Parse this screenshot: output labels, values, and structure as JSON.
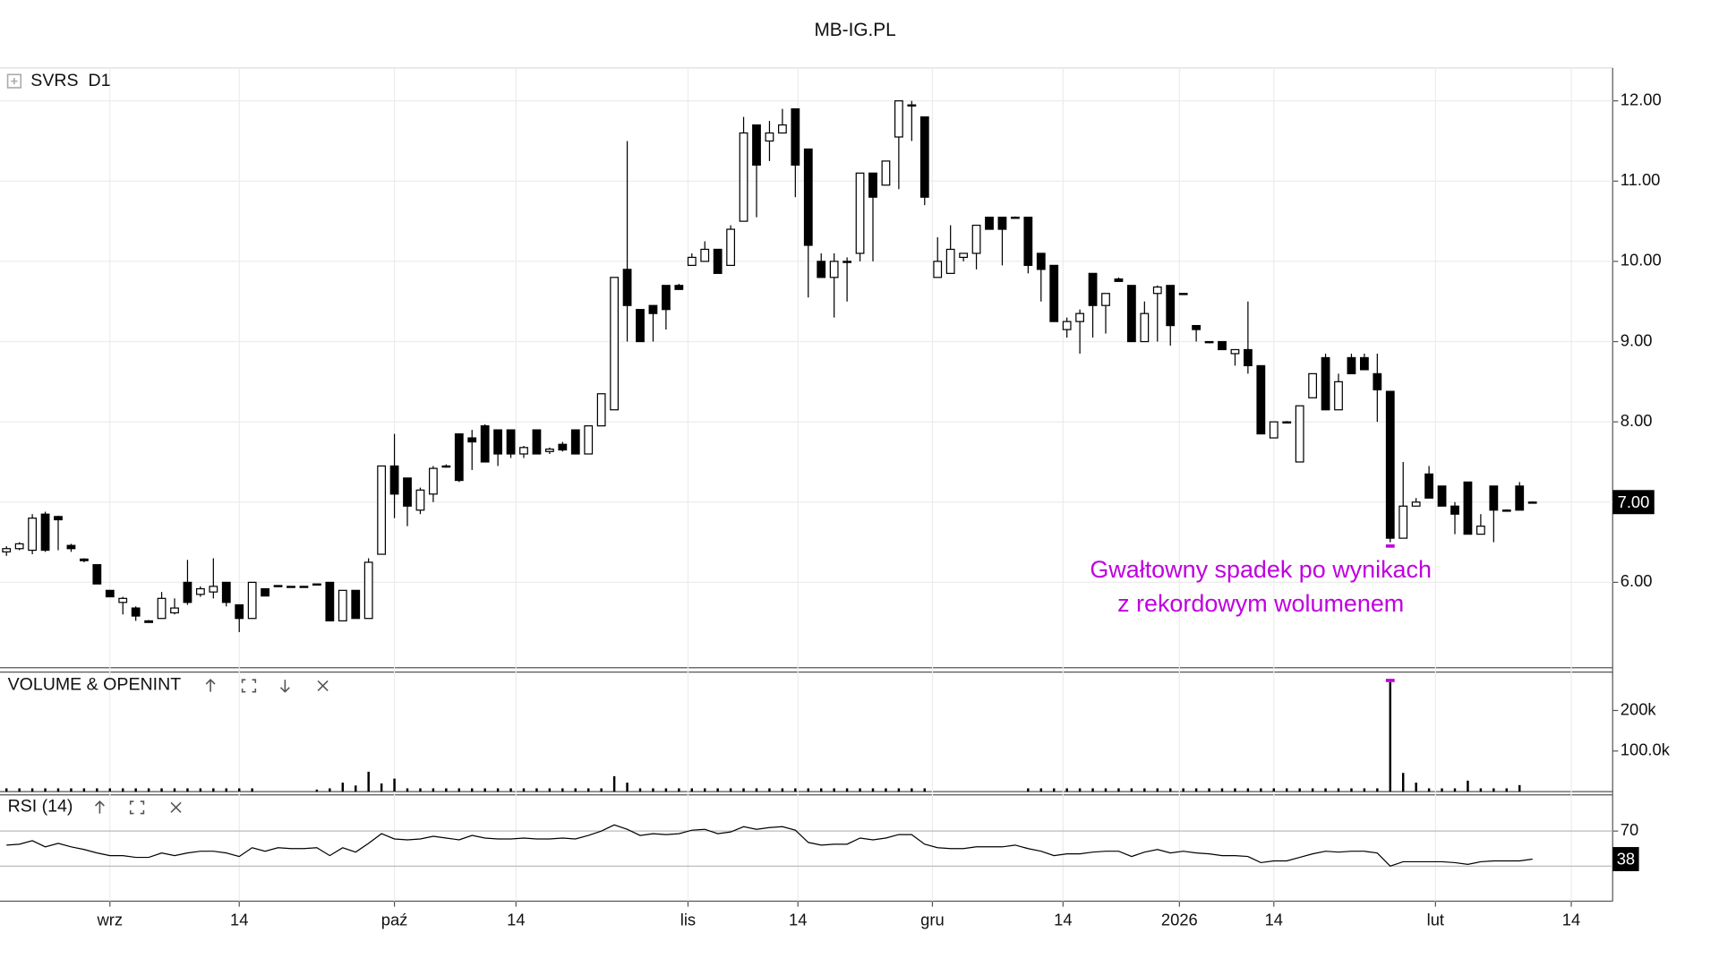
{
  "title": "MB-IG.PL",
  "chart_data": [
    {
      "type": "candlestick",
      "label": "SVRS  D1",
      "xlim": [
        -0.5,
        124.2
      ],
      "xticks": [
        {
          "value": 8,
          "label": "wrz"
        },
        {
          "value": 18,
          "label": "14"
        },
        {
          "value": 30,
          "label": "paź"
        },
        {
          "value": 39.4,
          "label": "14"
        },
        {
          "value": 52.7,
          "label": "lis"
        },
        {
          "value": 61.2,
          "label": "14"
        },
        {
          "value": 71.6,
          "label": "gru"
        },
        {
          "value": 81.7,
          "label": "14"
        },
        {
          "value": 90.7,
          "label": "2026"
        },
        {
          "value": 98,
          "label": "14"
        },
        {
          "value": 110.5,
          "label": "lut"
        },
        {
          "value": 121,
          "label": "14"
        }
      ],
      "ylim": [
        4.95,
        12.41
      ],
      "yticks": [
        {
          "value": 6,
          "label": "6.00"
        },
        {
          "value": 7,
          "label": "7.00"
        },
        {
          "value": 8,
          "label": "8.00"
        },
        {
          "value": 9,
          "label": "9.00"
        },
        {
          "value": 10,
          "label": "10.00"
        },
        {
          "value": 11,
          "label": "11.00"
        },
        {
          "value": 12,
          "label": "12.00"
        }
      ],
      "grid": true,
      "up_color": "#ffffff",
      "down_color": "#000000",
      "last_label": "7.00",
      "annotation": [
        "Gwałtowny spadek po wynikach",
        "z rekordowym wolumenem"
      ],
      "annotation_color": "#c000e0",
      "annotation_index": 107,
      "open": [
        6.38,
        6.42,
        6.4,
        6.85,
        6.82,
        6.46,
        6.29,
        6.22,
        5.9,
        5.75,
        5.68,
        5.52,
        5.55,
        5.62,
        6.0,
        5.85,
        5.88,
        6.0,
        5.72,
        5.55,
        5.92,
        5.96,
        5.95,
        5.95,
        5.98,
        6.0,
        5.52,
        5.9,
        5.55,
        6.35,
        7.45,
        7.3,
        6.9,
        7.1,
        7.45,
        7.85,
        7.8,
        7.95,
        7.9,
        7.9,
        7.6,
        7.9,
        7.63,
        7.72,
        7.9,
        7.6,
        7.95,
        8.15,
        9.9,
        9.4,
        9.45,
        9.7,
        9.7,
        9.95,
        10.0,
        10.15,
        9.95,
        10.5,
        11.7,
        11.5,
        11.6,
        11.9,
        11.4,
        10.0,
        9.8,
        10.0,
        10.1,
        11.1,
        10.95,
        11.55,
        11.95,
        11.8,
        9.8,
        9.85,
        10.05,
        10.1,
        10.55,
        10.55,
        10.55,
        10.55,
        10.1,
        9.95,
        9.15,
        9.25,
        9.85,
        9.45,
        9.78,
        9.7,
        9.0,
        9.6,
        9.7,
        9.6,
        9.2,
        9.0,
        9.0,
        8.85,
        8.9,
        8.7,
        7.8,
        8.0,
        7.5,
        8.3,
        8.8,
        8.15,
        8.8,
        8.8,
        8.6,
        8.38,
        6.55,
        6.95,
        7.35,
        7.2,
        6.95,
        7.25,
        6.6,
        7.2,
        6.9,
        7.2,
        7.0
      ],
      "high": [
        6.45,
        6.5,
        6.85,
        6.88,
        6.83,
        6.48,
        6.3,
        6.22,
        5.9,
        5.82,
        5.7,
        5.53,
        5.88,
        5.8,
        6.28,
        5.95,
        6.3,
        6.0,
        5.72,
        6.0,
        5.92,
        5.96,
        5.95,
        5.95,
        5.98,
        6.0,
        5.9,
        5.9,
        6.3,
        7.45,
        7.85,
        7.3,
        7.18,
        7.45,
        7.47,
        7.85,
        7.9,
        7.97,
        7.9,
        7.9,
        7.7,
        7.9,
        7.68,
        7.75,
        7.9,
        7.95,
        8.35,
        9.8,
        11.5,
        9.4,
        9.45,
        9.7,
        9.72,
        10.1,
        10.25,
        10.15,
        10.45,
        11.8,
        11.7,
        11.75,
        11.9,
        11.9,
        11.4,
        10.1,
        10.1,
        10.05,
        11.1,
        11.1,
        11.25,
        12.0,
        12.0,
        11.8,
        10.3,
        10.45,
        10.1,
        10.45,
        10.55,
        10.55,
        10.56,
        10.55,
        10.1,
        9.95,
        9.3,
        9.4,
        9.85,
        9.6,
        9.8,
        9.7,
        9.5,
        9.7,
        9.7,
        9.6,
        9.2,
        9.0,
        9.0,
        8.9,
        9.5,
        8.7,
        8.0,
        8.01,
        8.2,
        8.6,
        8.85,
        8.6,
        8.85,
        8.85,
        8.85,
        8.38,
        7.5,
        7.05,
        7.45,
        7.2,
        7.0,
        7.25,
        6.85,
        7.2,
        6.91,
        7.25,
        7.01
      ],
      "low": [
        6.33,
        6.4,
        6.35,
        6.38,
        6.4,
        6.38,
        6.25,
        5.98,
        5.82,
        5.6,
        5.52,
        5.5,
        5.55,
        5.6,
        5.72,
        5.82,
        5.8,
        5.7,
        5.38,
        5.55,
        5.83,
        5.95,
        5.94,
        5.94,
        5.97,
        5.52,
        5.52,
        5.55,
        5.55,
        6.35,
        6.8,
        6.7,
        6.85,
        7.0,
        7.43,
        7.25,
        7.4,
        7.5,
        7.45,
        7.55,
        7.55,
        7.6,
        7.6,
        7.63,
        7.6,
        7.6,
        7.95,
        8.15,
        9.0,
        9.0,
        9.0,
        9.15,
        9.65,
        9.95,
        10.0,
        9.85,
        9.95,
        10.5,
        10.55,
        11.25,
        11.6,
        10.8,
        9.55,
        9.8,
        9.3,
        9.5,
        10.0,
        10.0,
        10.95,
        10.9,
        11.5,
        10.7,
        9.8,
        9.85,
        10.0,
        9.9,
        10.4,
        9.95,
        10.54,
        9.85,
        9.5,
        9.25,
        9.05,
        8.85,
        9.05,
        9.1,
        9.75,
        9.0,
        9.0,
        9.0,
        8.95,
        9.58,
        9.0,
        8.98,
        8.9,
        8.7,
        8.6,
        7.85,
        7.8,
        7.99,
        7.5,
        8.3,
        8.15,
        8.15,
        8.6,
        8.65,
        8.0,
        6.5,
        6.55,
        6.95,
        7.05,
        6.95,
        6.6,
        6.6,
        6.6,
        6.5,
        6.89,
        6.9,
        6.99
      ],
      "close": [
        6.42,
        6.48,
        6.8,
        6.4,
        6.78,
        6.42,
        6.27,
        5.98,
        5.82,
        5.8,
        5.58,
        5.5,
        5.8,
        5.68,
        5.75,
        5.92,
        5.95,
        5.75,
        5.55,
        6.0,
        5.83,
        5.95,
        5.94,
        5.94,
        5.97,
        5.52,
        5.9,
        5.55,
        6.25,
        7.45,
        7.1,
        6.95,
        7.15,
        7.42,
        7.44,
        7.27,
        7.75,
        7.5,
        7.6,
        7.6,
        7.68,
        7.6,
        7.66,
        7.65,
        7.6,
        7.95,
        8.35,
        9.8,
        9.45,
        9.0,
        9.35,
        9.4,
        9.65,
        10.05,
        10.15,
        9.85,
        10.4,
        11.6,
        11.2,
        11.6,
        11.7,
        11.2,
        10.2,
        9.8,
        10.0,
        10.0,
        11.1,
        10.8,
        11.25,
        12.0,
        11.95,
        10.8,
        10.0,
        10.15,
        10.1,
        10.45,
        10.4,
        10.4,
        10.55,
        9.95,
        9.9,
        9.25,
        9.25,
        9.35,
        9.45,
        9.6,
        9.75,
        9.0,
        9.35,
        9.68,
        9.2,
        9.59,
        9.15,
        8.99,
        8.9,
        8.9,
        8.7,
        7.85,
        8.0,
        8.0,
        8.2,
        8.6,
        8.15,
        8.5,
        8.6,
        8.65,
        8.4,
        6.55,
        6.95,
        7.0,
        7.05,
        6.95,
        6.85,
        6.6,
        6.7,
        6.9,
        6.9,
        6.9,
        7.0
      ]
    },
    {
      "type": "bar",
      "label": "VOLUME & OPENINT",
      "color": "#000000",
      "ylim": [
        0,
        292000
      ],
      "yticks": [
        {
          "value": 100000,
          "label": "100.0k"
        },
        {
          "value": 200000,
          "label": "200k"
        }
      ],
      "values": [
        8000,
        8000,
        8000,
        8000,
        8000,
        8000,
        8000,
        8000,
        8000,
        8000,
        8000,
        8000,
        8000,
        8000,
        8000,
        8000,
        8000,
        8000,
        8000,
        8000,
        0,
        0,
        0,
        0,
        5000,
        8000,
        22000,
        15000,
        49000,
        20000,
        32000,
        8000,
        8000,
        8000,
        8000,
        8000,
        8000,
        8000,
        8000,
        8000,
        8000,
        8000,
        8000,
        8000,
        8000,
        8000,
        8000,
        38000,
        22000,
        8000,
        8000,
        8000,
        8000,
        8000,
        8000,
        8000,
        8000,
        8000,
        8000,
        8000,
        8000,
        8000,
        8000,
        8000,
        8000,
        8000,
        8000,
        8000,
        8000,
        8000,
        8000,
        8000,
        0,
        0,
        0,
        0,
        0,
        0,
        0,
        8000,
        8000,
        8000,
        8000,
        8000,
        8000,
        8000,
        8000,
        8000,
        8000,
        8000,
        8000,
        8000,
        8000,
        8000,
        8000,
        8000,
        8000,
        8000,
        8000,
        8000,
        8000,
        8000,
        8000,
        8000,
        8000,
        8000,
        8000,
        270000,
        46000,
        22000,
        8000,
        8000,
        8000,
        27000,
        8000,
        8000,
        8000,
        16000,
        0
      ]
    },
    {
      "type": "line",
      "label": "RSI (14)",
      "color": "#000000",
      "ylim": [
        -10,
        110
      ],
      "yticks": [
        70
      ],
      "levels": [
        30,
        70
      ],
      "last_label": "38",
      "values": [
        54,
        55,
        59,
        52,
        56,
        52,
        49,
        45,
        42,
        42,
        40,
        40,
        45,
        42,
        45,
        47,
        47,
        45,
        41,
        51,
        47,
        51,
        50,
        50,
        51,
        42,
        51,
        46,
        56,
        67,
        61,
        60,
        61,
        64,
        62,
        60,
        65,
        62,
        61,
        61,
        62,
        61,
        61,
        62,
        61,
        65,
        70,
        77,
        72,
        65,
        67,
        66,
        67,
        71,
        72,
        67,
        69,
        75,
        72,
        74,
        75,
        71,
        57,
        54,
        55,
        55,
        62,
        60,
        62,
        66,
        66,
        55,
        51,
        50,
        50,
        52,
        52,
        52,
        54,
        50,
        47,
        42,
        44,
        44,
        46,
        47,
        47,
        41,
        46,
        49,
        45,
        47,
        45,
        44,
        42,
        42,
        41,
        34,
        36,
        36,
        40,
        44,
        47,
        46,
        47,
        47,
        45,
        30,
        35,
        35,
        35,
        35,
        34,
        32,
        35,
        36,
        36,
        36,
        38
      ]
    }
  ]
}
